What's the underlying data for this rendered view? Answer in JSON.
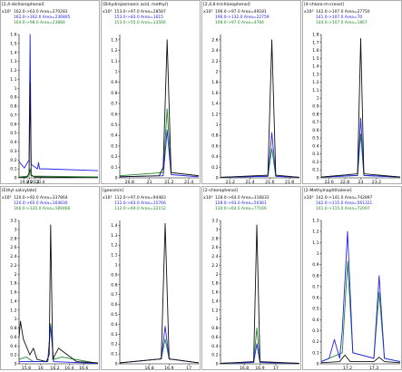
{
  "colors": {
    "black": "#111111",
    "blue": "#2222ee",
    "green": "#1f8a2a",
    "axis": "#000000"
  },
  "chart_data": [
    {
      "type": "line",
      "title": "[2,4-dichlorophenol]",
      "scale_label": "x10⁵",
      "legend": [
        "162.0->63.0 Area=270283",
        "162.0->162.0 Area=236805",
        "164.0->98.0 Area=23880"
      ],
      "ylim": [
        0,
        1.6
      ],
      "yticks": [
        "0",
        "0.1",
        "0.2",
        "0.3",
        "0.4",
        "0.5",
        "0.6",
        "0.7",
        "0.8",
        "0.9",
        "1",
        "1.1",
        "1.2",
        "1.3",
        "1.4",
        "1.5",
        "1.6"
      ],
      "xlim": [
        19.6,
        22.6
      ],
      "xticks": [
        "19.8",
        "20",
        "20.2",
        "20.4"
      ],
      "series": [
        {
          "color": "black",
          "x": [
            19.6,
            19.9,
            19.98,
            20.02,
            20.06,
            20.2,
            22.6
          ],
          "y": [
            0,
            0.01,
            0.05,
            1.06,
            0.03,
            0.01,
            0
          ]
        },
        {
          "color": "blue",
          "x": [
            19.6,
            19.8,
            19.98,
            20.02,
            20.06,
            20.3,
            20.34,
            20.38,
            20.6,
            22.6
          ],
          "y": [
            0.18,
            0.11,
            0.2,
            1.6,
            0.15,
            0.1,
            0.17,
            0.1,
            0.1,
            0.08
          ]
        },
        {
          "color": "green",
          "x": [
            19.6,
            19.98,
            20.02,
            20.06,
            22.6
          ],
          "y": [
            0.01,
            0.02,
            0.1,
            0.02,
            0.01
          ]
        }
      ]
    },
    {
      "type": "line",
      "title": "[Dihydrojasmonic acid, methyl]",
      "scale_label": "x10⁵",
      "legend": [
        "153.0->97.0 Area=28587",
        "153.0->83.0 Area=1615",
        "153.0->55.0 Area=13566"
      ],
      "ylim": [
        0,
        1.35
      ],
      "yticks": [
        "0",
        "0.1",
        "0.2",
        "0.3",
        "0.4",
        "0.5",
        "0.6",
        "0.7",
        "0.8",
        "0.9",
        "1",
        "1.1",
        "1.2",
        "1.3"
      ],
      "xlim": [
        20.7,
        21.5
      ],
      "xticks": [
        "20.8",
        "21",
        "21.2",
        "21.4"
      ],
      "series": [
        {
          "color": "black",
          "x": [
            20.7,
            21.1,
            21.14,
            21.18,
            21.22,
            21.5
          ],
          "y": [
            0.01,
            0.02,
            0.1,
            1.3,
            0.05,
            0.02
          ]
        },
        {
          "color": "blue",
          "x": [
            20.7,
            21.14,
            21.18,
            21.22,
            21.5
          ],
          "y": [
            0.01,
            0.02,
            0.45,
            0.03,
            0.01
          ]
        },
        {
          "color": "green",
          "x": [
            20.7,
            21.14,
            21.18,
            21.22,
            21.5
          ],
          "y": [
            0.02,
            0.05,
            0.65,
            0.05,
            0.02
          ]
        }
      ]
    },
    {
      "type": "line",
      "title": "[2,4,6-trichlorophenol]",
      "scale_label": "x10⁵",
      "legend": [
        "196.0->97.0 Area=49181",
        "196.0->132.0 Area=22759",
        "198.0->97.0 Area=4784"
      ],
      "ylim": [
        0,
        2.7
      ],
      "yticks": [
        "0",
        "0.2",
        "0.4",
        "0.6",
        "0.8",
        "1",
        "1.2",
        "1.4",
        "1.6",
        "1.8",
        "2",
        "2.2",
        "2.4",
        "2.6"
      ],
      "xlim": [
        21.1,
        21.9
      ],
      "xticks": [
        "21.2",
        "21.4",
        "21.6",
        "21.8"
      ],
      "series": [
        {
          "color": "black",
          "x": [
            21.1,
            21.58,
            21.62,
            21.66,
            21.9
          ],
          "y": [
            0.01,
            0.05,
            2.6,
            0.05,
            0.01
          ]
        },
        {
          "color": "blue",
          "x": [
            21.1,
            21.58,
            21.62,
            21.66,
            21.9
          ],
          "y": [
            0.01,
            0.03,
            0.85,
            0.03,
            0.01
          ]
        },
        {
          "color": "green",
          "x": [
            21.1,
            21.58,
            21.62,
            21.66,
            21.9
          ],
          "y": [
            0.01,
            0.03,
            0.55,
            0.03,
            0.01
          ]
        }
      ]
    },
    {
      "type": "line",
      "title": "[4-chloro-m-cresol]",
      "scale_label": "x10⁵",
      "legend": [
        "142.0->107.0 Area=27750",
        "141.0->107.0 Area=70",
        "144.0->107.0 Area=1867"
      ],
      "ylim": [
        0,
        1.8
      ],
      "yticks": [
        "0",
        "0.1",
        "0.2",
        "0.3",
        "0.4",
        "0.5",
        "0.6",
        "0.7",
        "0.8",
        "0.9",
        "1",
        "1.1",
        "1.2",
        "1.3",
        "1.4",
        "1.5",
        "1.6",
        "1.7",
        "1.8"
      ],
      "xlim": [
        22.5,
        23.5
      ],
      "xticks": [
        "22.6",
        "22.8",
        "23",
        "23.2"
      ],
      "series": [
        {
          "color": "black",
          "x": [
            22.5,
            22.96,
            23.0,
            23.04,
            23.5
          ],
          "y": [
            0.01,
            0.05,
            1.75,
            0.05,
            0.01
          ]
        },
        {
          "color": "blue",
          "x": [
            22.5,
            22.96,
            23.0,
            23.04,
            23.5
          ],
          "y": [
            0.01,
            0.03,
            0.75,
            0.03,
            0.01
          ]
        },
        {
          "color": "green",
          "x": [
            22.5,
            22.96,
            23.0,
            23.04,
            23.5
          ],
          "y": [
            0.01,
            0.03,
            0.55,
            0.03,
            0.01
          ]
        }
      ]
    },
    {
      "type": "line",
      "title": "[Ethyl salicylate]",
      "scale_label": "x10⁵",
      "legend": [
        "120.0->92.0 Area=337864",
        "120.0->65.0 Area=164830",
        "166.0->120.0 Area=189466"
      ],
      "ylim": [
        0,
        3.2
      ],
      "yticks": [
        "0",
        "0.2",
        "0.4",
        "0.6",
        "0.8",
        "1",
        "1.2",
        "1.4",
        "1.6",
        "1.8",
        "2",
        "2.2",
        "2.4",
        "2.6",
        "2.8",
        "3",
        "3.2"
      ],
      "xlim": [
        15.7,
        16.8
      ],
      "xticks": [
        "15.8",
        "16",
        "16.2",
        "16.4",
        "16.6"
      ],
      "series": [
        {
          "color": "black",
          "x": [
            15.7,
            15.72,
            15.76,
            15.85,
            15.9,
            15.95,
            16.08,
            16.12,
            16.14,
            16.17,
            16.25,
            16.5,
            16.8
          ],
          "y": [
            0.6,
            0.95,
            0.55,
            0.2,
            0.35,
            0.1,
            0.05,
            0.2,
            3.1,
            0.1,
            0.35,
            0.05,
            0.02
          ]
        },
        {
          "color": "blue",
          "x": [
            15.7,
            16.1,
            16.14,
            16.18,
            16.8
          ],
          "y": [
            0.05,
            0.05,
            0.85,
            0.05,
            0.01
          ]
        },
        {
          "color": "green",
          "x": [
            15.7,
            15.8,
            15.9,
            16.1,
            16.14,
            16.18,
            16.3,
            16.8
          ],
          "y": [
            0.1,
            0.15,
            0.05,
            0.05,
            0.9,
            0.1,
            0.15,
            0.01
          ]
        }
      ]
    },
    {
      "type": "line",
      "title": "[geosmin]",
      "scale_label": "x10⁵",
      "legend": [
        "112.0->97.0 Area=94483",
        "112.0->83.0 Area=15766",
        "112.0->69.0 Area=32152"
      ],
      "ylim": [
        0,
        1.45
      ],
      "yticks": [
        "0",
        "0.1",
        "0.2",
        "0.3",
        "0.4",
        "0.5",
        "0.6",
        "0.7",
        "0.8",
        "0.9",
        "1",
        "1.1",
        "1.2",
        "1.3",
        "1.4"
      ],
      "xlim": [
        16.65,
        17.05
      ],
      "xticks": [
        "16.8",
        "16.9",
        "17"
      ],
      "series": [
        {
          "color": "black",
          "x": [
            16.65,
            16.86,
            16.88,
            16.9,
            17.05
          ],
          "y": [
            0.01,
            0.05,
            1.42,
            0.05,
            0.01
          ]
        },
        {
          "color": "blue",
          "x": [
            16.65,
            16.86,
            16.88,
            16.9,
            17.05
          ],
          "y": [
            0.01,
            0.05,
            0.38,
            0.05,
            0.01
          ]
        },
        {
          "color": "green",
          "x": [
            16.65,
            16.86,
            16.88,
            16.9,
            17.05
          ],
          "y": [
            0.01,
            0.05,
            0.25,
            0.05,
            0.01
          ]
        }
      ]
    },
    {
      "type": "line",
      "title": "[2-chlorophenol]",
      "scale_label": "x10⁵",
      "legend": [
        "128.0->64.0 Area=316833",
        "128.0->93.0 Area=50361",
        "130.0->64.0 Area=77166"
      ],
      "ylim": [
        0,
        3.2
      ],
      "yticks": [
        "0",
        "0.2",
        "0.4",
        "0.6",
        "0.8",
        "1",
        "1.2",
        "1.4",
        "1.6",
        "1.8",
        "2",
        "2.2",
        "2.4",
        "2.6",
        "2.8",
        "3",
        "3.2"
      ],
      "xlim": [
        16.65,
        17.15
      ],
      "xticks": [
        "16.8",
        "16.9",
        "17"
      ],
      "series": [
        {
          "color": "black",
          "x": [
            16.65,
            16.86,
            16.88,
            16.9,
            17.15
          ],
          "y": [
            0.01,
            0.05,
            3.1,
            0.05,
            0.01
          ]
        },
        {
          "color": "blue",
          "x": [
            16.65,
            16.86,
            16.88,
            16.9,
            17.15
          ],
          "y": [
            0.01,
            0.03,
            0.45,
            0.03,
            0.01
          ]
        },
        {
          "color": "green",
          "x": [
            16.65,
            16.86,
            16.88,
            16.9,
            17.15
          ],
          "y": [
            0.01,
            0.03,
            0.8,
            0.03,
            0.01
          ]
        }
      ]
    },
    {
      "type": "line",
      "title": "[2-Methylnaphthalene]",
      "scale_label": "x10⁵",
      "legend": [
        "142.0->141.0 Area=742897",
        "142.0->115.0 Area=561321",
        "141.0->115.0 Area=72097"
      ],
      "ylim": [
        0,
        1.3
      ],
      "yticks": [
        "0",
        "0.1",
        "0.2",
        "0.3",
        "0.4",
        "0.5",
        "0.6",
        "0.7",
        "0.8",
        "0.9",
        "1",
        "1.1",
        "1.2",
        "1.3"
      ],
      "xlim": [
        17.1,
        17.4
      ],
      "xticks": [
        "17.2",
        "17.3"
      ],
      "series": [
        {
          "color": "black",
          "x": [
            17.1,
            17.17,
            17.19,
            17.21,
            17.3,
            17.32,
            17.34,
            17.4
          ],
          "y": [
            0.01,
            0.02,
            0.08,
            0.02,
            0.02,
            0.06,
            0.02,
            0.01
          ]
        },
        {
          "color": "blue",
          "x": [
            17.1,
            17.13,
            17.15,
            17.17,
            17.18,
            17.2,
            17.22,
            17.3,
            17.32,
            17.34,
            17.4
          ],
          "y": [
            0.02,
            0.05,
            0.22,
            0.05,
            0.3,
            1.2,
            0.1,
            0.05,
            0.8,
            0.05,
            0.02
          ]
        },
        {
          "color": "green",
          "x": [
            17.1,
            17.18,
            17.2,
            17.22,
            17.3,
            17.32,
            17.34,
            17.4
          ],
          "y": [
            0.02,
            0.1,
            0.93,
            0.1,
            0.05,
            0.65,
            0.05,
            0.02
          ]
        }
      ]
    }
  ]
}
